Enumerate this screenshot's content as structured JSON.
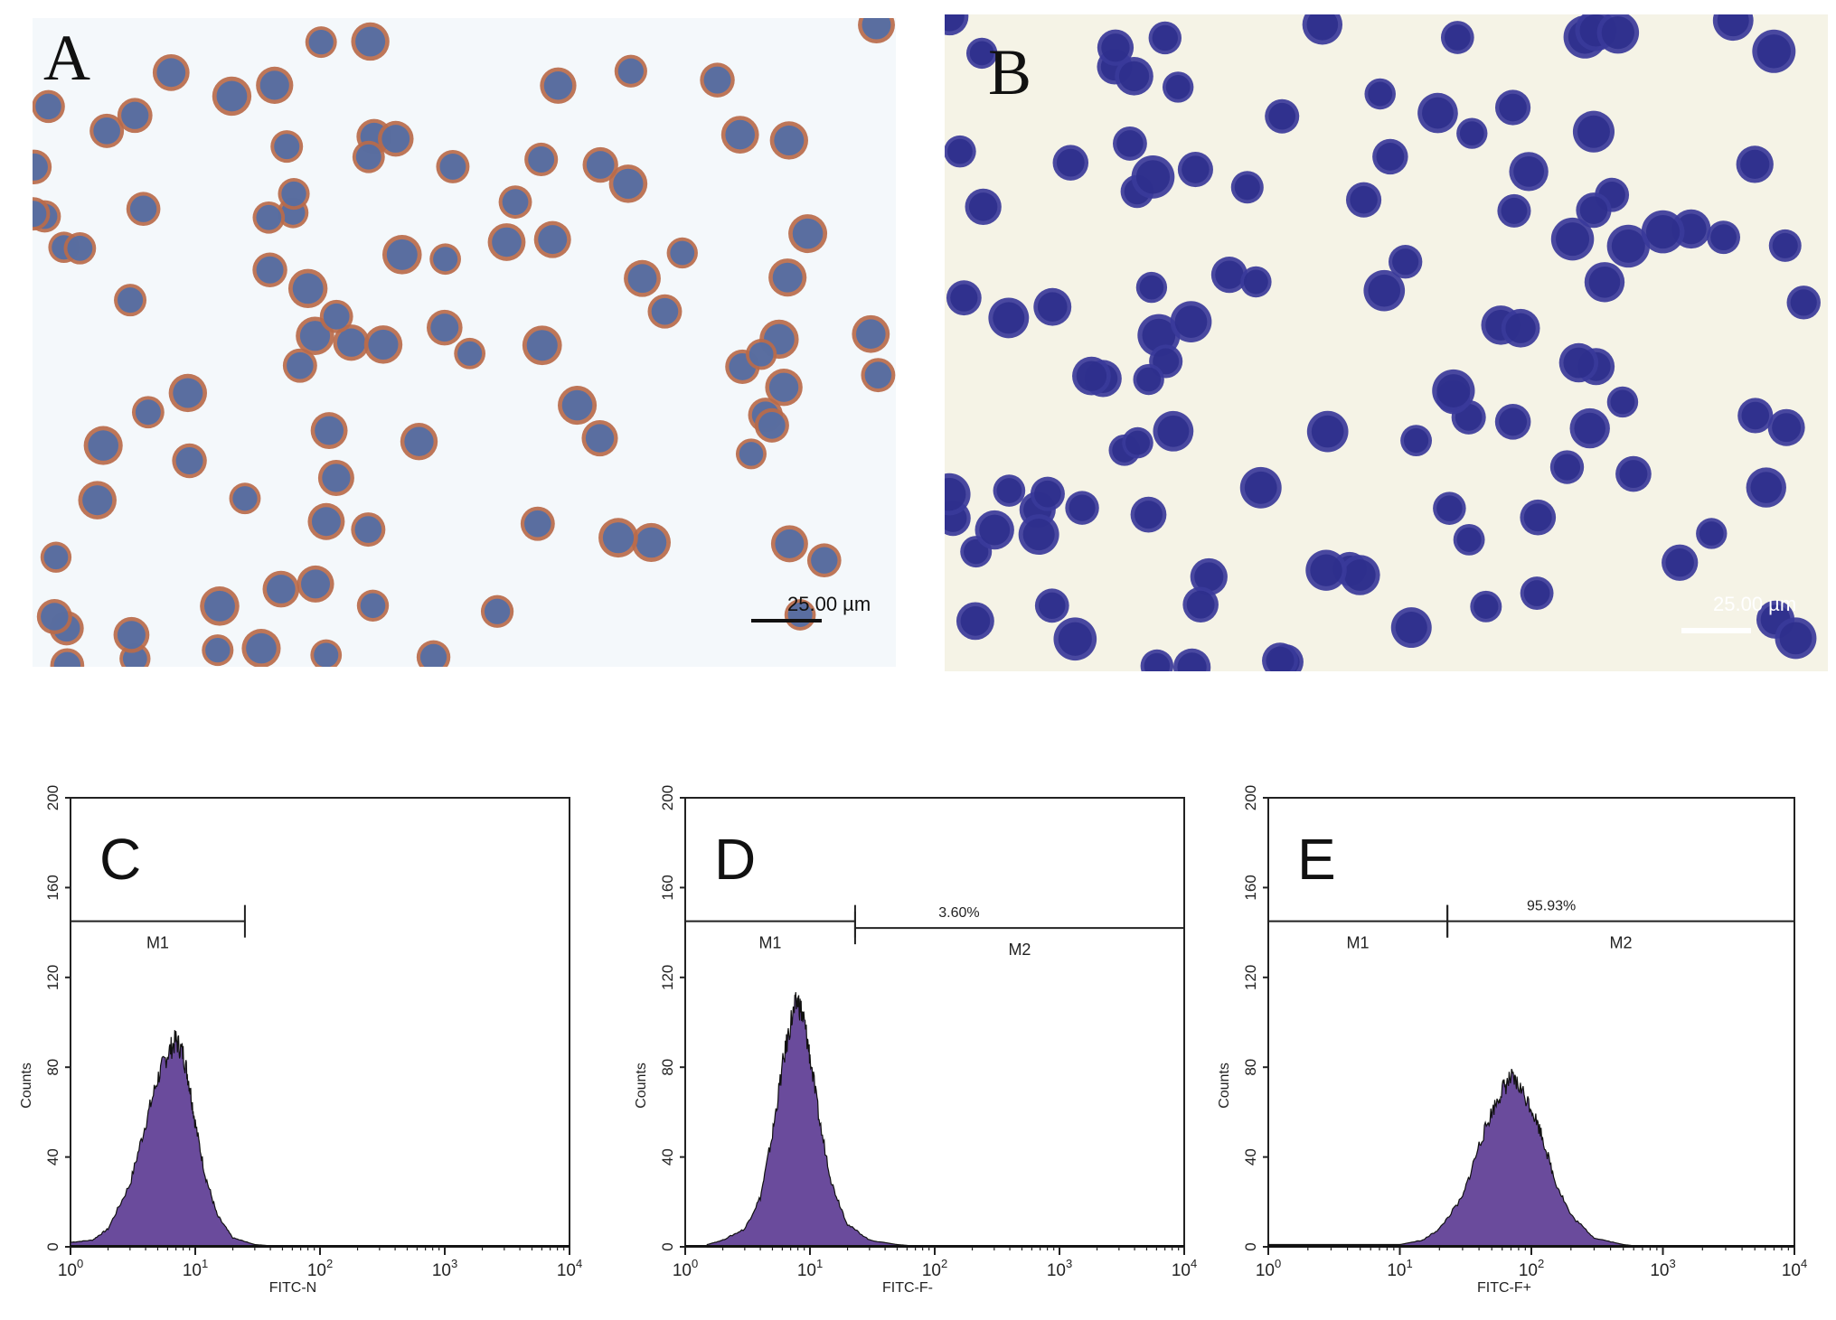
{
  "micrographs": [
    {
      "label": "A",
      "scale_bar": "25.00 µm",
      "stain_cells": "#b86a4a",
      "nucleus_color": "#4f6ea8",
      "background": "#f4f8fb"
    },
    {
      "label": "B",
      "scale_bar": "25.00 µm",
      "stain_cells": "#3a3a9a",
      "nucleus_color": "#2e2f8c",
      "background": "#f5f3e6"
    }
  ],
  "chart_data": [
    {
      "type": "area",
      "panel_label": "C",
      "xlabel": "FITC-N",
      "ylabel": "Counts",
      "xscale": "log",
      "xlim": [
        1,
        10000
      ],
      "ylim": [
        0,
        200
      ],
      "yticks": [
        0,
        40,
        80,
        120,
        160,
        200
      ],
      "xticks": [
        "10^0",
        "10^1",
        "10^2",
        "10^3",
        "10^4"
      ],
      "fill_color": "#6a4b9c",
      "markers": [
        {
          "name": "M1",
          "from": 1,
          "to": 25,
          "y": 145,
          "percent": ""
        }
      ],
      "series": [
        {
          "x": [
            1.0,
            1.5,
            2,
            3,
            4,
            5,
            6,
            7,
            8,
            9,
            10,
            12,
            15,
            20,
            30,
            50
          ],
          "y": [
            2,
            3,
            8,
            28,
            55,
            75,
            86,
            92,
            86,
            72,
            55,
            32,
            14,
            4,
            1,
            0
          ]
        }
      ]
    },
    {
      "type": "area",
      "panel_label": "D",
      "xlabel": "FITC-F-",
      "ylabel": "Counts",
      "xscale": "log",
      "xlim": [
        1,
        10000
      ],
      "ylim": [
        0,
        200
      ],
      "yticks": [
        0,
        40,
        80,
        120,
        160,
        200
      ],
      "xticks": [
        "10^0",
        "10^1",
        "10^2",
        "10^3",
        "10^4"
      ],
      "fill_color": "#6a4b9c",
      "markers": [
        {
          "name": "M1",
          "from": 1,
          "to": 23,
          "y": 145,
          "percent": ""
        },
        {
          "name": "M2",
          "from": 23,
          "to": 10000,
          "y": 142,
          "percent": "3.60%"
        }
      ],
      "series": [
        {
          "x": [
            1.5,
            2,
            3,
            4,
            5,
            6,
            7,
            8,
            9,
            10,
            12,
            15,
            20,
            30,
            50,
            80
          ],
          "y": [
            1,
            3,
            8,
            22,
            50,
            80,
            100,
            110,
            100,
            85,
            55,
            28,
            10,
            3,
            1,
            0
          ]
        }
      ]
    },
    {
      "type": "area",
      "panel_label": "E",
      "xlabel": "FITC-F+",
      "ylabel": "Counts",
      "xscale": "log",
      "xlim": [
        1,
        10000
      ],
      "ylim": [
        0,
        200
      ],
      "yticks": [
        0,
        40,
        80,
        120,
        160,
        200
      ],
      "xticks": [
        "10^0",
        "10^1",
        "10^2",
        "10^3",
        "10^4"
      ],
      "fill_color": "#6a4b9c",
      "markers": [
        {
          "name": "M1",
          "from": 1,
          "to": 23,
          "y": 145,
          "percent": ""
        },
        {
          "name": "M2",
          "from": 23,
          "to": 10000,
          "y": 145,
          "percent": "95.93%"
        }
      ],
      "series": [
        {
          "x": [
            1,
            5,
            10,
            15,
            20,
            30,
            40,
            50,
            60,
            70,
            80,
            100,
            120,
            150,
            200,
            300,
            500,
            700
          ],
          "y": [
            1,
            1,
            1,
            3,
            8,
            22,
            45,
            60,
            70,
            75,
            72,
            62,
            50,
            30,
            14,
            4,
            1,
            0
          ]
        }
      ]
    }
  ]
}
